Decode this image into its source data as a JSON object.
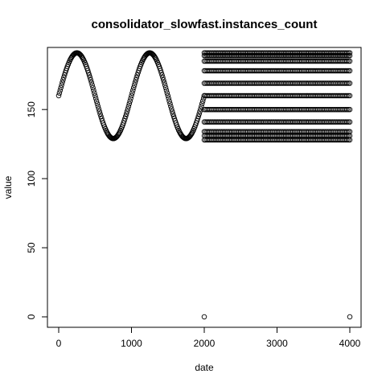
{
  "chart_data": {
    "type": "scatter",
    "title": "consolidator_slowfast.instances_count",
    "xlabel": "date",
    "ylabel": "value",
    "xlim": [
      0,
      4000
    ],
    "ylim": [
      0,
      192
    ],
    "x_ticks": [
      0,
      1000,
      2000,
      3000,
      4000
    ],
    "y_ticks": [
      0,
      50,
      100,
      150
    ],
    "grid": false,
    "legend": "none",
    "point_color": "#000000",
    "series": [
      {
        "marker": "open-circle",
        "segments": [
          {
            "kind": "sinusoid",
            "x_start": 0,
            "x_end": 2000,
            "x_step": 10,
            "center": 160,
            "amplitude": 31,
            "period": 1000,
            "phase_start_value": 160
          },
          {
            "kind": "banded",
            "x_start": 2000,
            "x_end": 4000,
            "x_step": 20,
            "band_values": [
              128,
              131,
              134,
              141,
              150,
              160,
              169,
              178,
              185,
              189,
              191
            ]
          },
          {
            "kind": "points",
            "x": [
              2000,
              4000
            ],
            "y": [
              0,
              0
            ]
          }
        ]
      }
    ]
  }
}
